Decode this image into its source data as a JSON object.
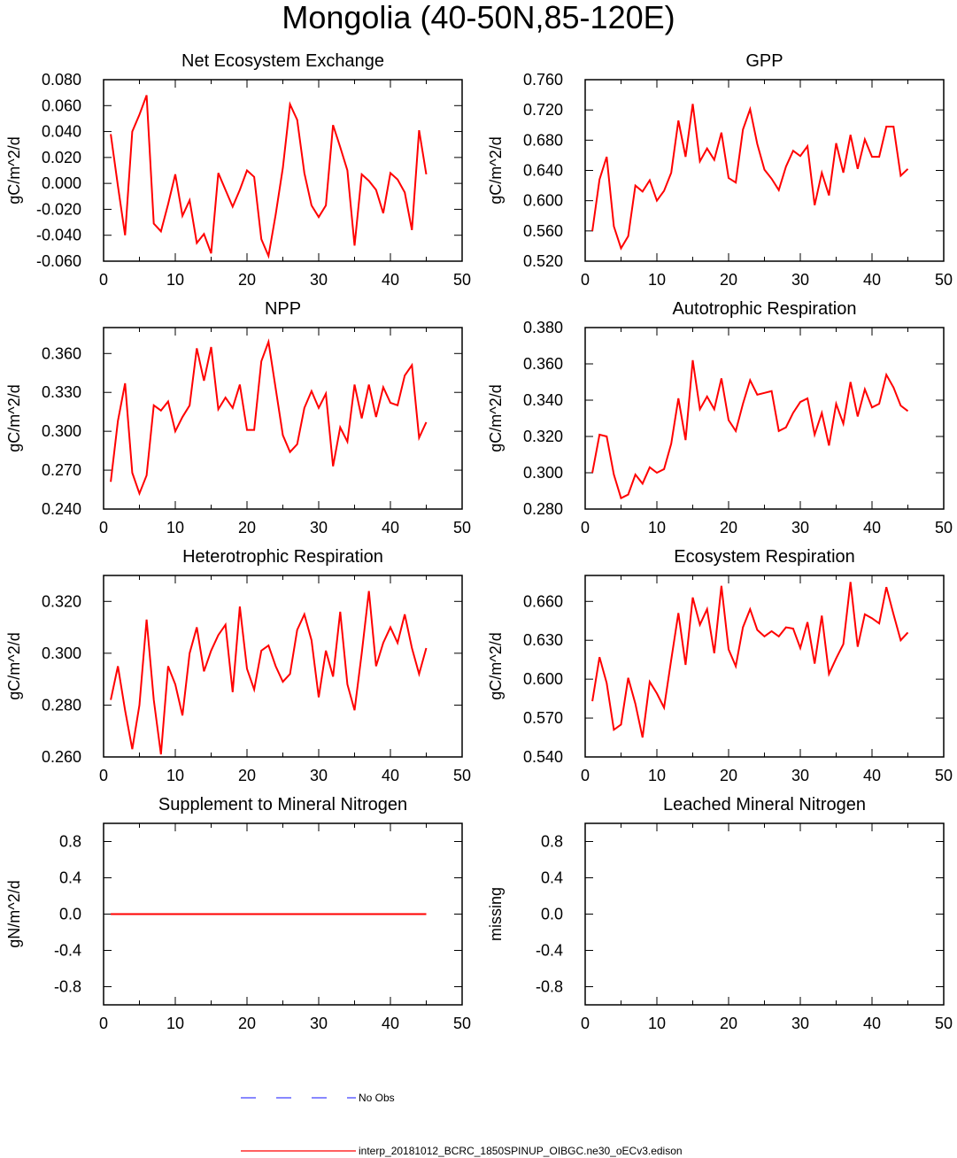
{
  "title": "Mongolia (40-50N,85-120E)",
  "colors": {
    "model_line": "#ff0000",
    "obs_line": "#4040ff",
    "axes": "#000000"
  },
  "legend": {
    "items": [
      {
        "label": "No Obs",
        "style": "dashed",
        "color": "#4040ff"
      },
      {
        "label": "interp_20181012_BCRC_1850SPINUP_OIBGC.ne30_oECv3.edison",
        "style": "solid",
        "color": "#ff0000"
      }
    ]
  },
  "chart_data": [
    {
      "type": "line",
      "title": "Net Ecosystem Exchange",
      "ylabel": "gC/m^2/d",
      "xlim": [
        0,
        50
      ],
      "ylim": [
        -0.06,
        0.08
      ],
      "xticks": [
        "0",
        "10",
        "20",
        "30",
        "40",
        "50"
      ],
      "yticks": [
        -0.06,
        -0.04,
        -0.02,
        0.0,
        0.02,
        0.04,
        0.06,
        0.08
      ],
      "ytick_labels": [
        "-0.060",
        "-0.040",
        "-0.020",
        "0.000",
        "0.020",
        "0.040",
        "0.060",
        "0.080"
      ],
      "series": [
        {
          "x": [
            1,
            2,
            3,
            4,
            5,
            6,
            7,
            8,
            9,
            10,
            11,
            12,
            13,
            14,
            15,
            16,
            17,
            18,
            19,
            20,
            21,
            22,
            23,
            24,
            25,
            26,
            27,
            28,
            29,
            30,
            31,
            32,
            33,
            34,
            35,
            36,
            37,
            38,
            39,
            40,
            41,
            42,
            43,
            44,
            45
          ],
          "values": [
            0.038,
            -0.002,
            -0.04,
            0.04,
            0.053,
            0.068,
            -0.031,
            -0.037,
            -0.016,
            0.007,
            -0.025,
            -0.013,
            -0.046,
            -0.039,
            -0.054,
            0.008,
            -0.005,
            -0.018,
            -0.005,
            0.01,
            0.005,
            -0.043,
            -0.056,
            -0.024,
            0.012,
            0.061,
            0.049,
            0.008,
            -0.017,
            -0.026,
            -0.017,
            0.045,
            0.028,
            0.01,
            -0.048,
            0.007,
            0.002,
            -0.005,
            -0.023,
            0.008,
            0.003,
            -0.007,
            -0.036,
            0.041,
            0.007
          ]
        }
      ]
    },
    {
      "type": "line",
      "title": "GPP",
      "ylabel": "gC/m^2/d",
      "xlim": [
        0,
        50
      ],
      "ylim": [
        0.52,
        0.76
      ],
      "xticks": [
        "0",
        "10",
        "20",
        "30",
        "40",
        "50"
      ],
      "yticks": [
        0.52,
        0.56,
        0.6,
        0.64,
        0.68,
        0.72,
        0.76
      ],
      "ytick_labels": [
        "0.520",
        "0.560",
        "0.600",
        "0.640",
        "0.680",
        "0.720",
        "0.760"
      ],
      "series": [
        {
          "x": [
            1,
            2,
            3,
            4,
            5,
            6,
            7,
            8,
            9,
            10,
            11,
            12,
            13,
            14,
            15,
            16,
            17,
            18,
            19,
            20,
            21,
            22,
            23,
            24,
            25,
            26,
            27,
            28,
            29,
            30,
            31,
            32,
            33,
            34,
            35,
            36,
            37,
            38,
            39,
            40,
            41,
            42,
            43,
            44,
            45
          ],
          "values": [
            0.56,
            0.628,
            0.658,
            0.566,
            0.537,
            0.553,
            0.62,
            0.612,
            0.627,
            0.6,
            0.613,
            0.637,
            0.706,
            0.658,
            0.728,
            0.652,
            0.669,
            0.654,
            0.69,
            0.63,
            0.624,
            0.694,
            0.721,
            0.675,
            0.641,
            0.629,
            0.614,
            0.645,
            0.666,
            0.659,
            0.672,
            0.594,
            0.637,
            0.607,
            0.676,
            0.637,
            0.687,
            0.642,
            0.681,
            0.658,
            0.658,
            0.698,
            0.698,
            0.633,
            0.642
          ]
        }
      ]
    },
    {
      "type": "line",
      "title": "NPP",
      "ylabel": "gC/m^2/d",
      "xlim": [
        0,
        50
      ],
      "ylim": [
        0.24,
        0.38
      ],
      "xticks": [
        "0",
        "10",
        "20",
        "30",
        "40",
        "50"
      ],
      "yticks": [
        0.24,
        0.27,
        0.3,
        0.33,
        0.36
      ],
      "ytick_labels": [
        "0.240",
        "0.270",
        "0.300",
        "0.330",
        "0.360"
      ],
      "series": [
        {
          "x": [
            1,
            2,
            3,
            4,
            5,
            6,
            7,
            8,
            9,
            10,
            11,
            12,
            13,
            14,
            15,
            16,
            17,
            18,
            19,
            20,
            21,
            22,
            23,
            24,
            25,
            26,
            27,
            28,
            29,
            30,
            31,
            32,
            33,
            34,
            35,
            36,
            37,
            38,
            39,
            40,
            41,
            42,
            43,
            44,
            45
          ],
          "values": [
            0.261,
            0.308,
            0.337,
            0.268,
            0.252,
            0.266,
            0.32,
            0.316,
            0.323,
            0.3,
            0.311,
            0.32,
            0.364,
            0.339,
            0.365,
            0.317,
            0.326,
            0.318,
            0.336,
            0.301,
            0.301,
            0.354,
            0.369,
            0.333,
            0.297,
            0.284,
            0.29,
            0.318,
            0.331,
            0.318,
            0.329,
            0.273,
            0.303,
            0.292,
            0.336,
            0.31,
            0.336,
            0.311,
            0.334,
            0.322,
            0.32,
            0.343,
            0.351,
            0.295,
            0.307
          ]
        }
      ]
    },
    {
      "type": "line",
      "title": "Autotrophic Respiration",
      "ylabel": "gC/m^2/d",
      "xlim": [
        0,
        50
      ],
      "ylim": [
        0.28,
        0.38
      ],
      "xticks": [
        "0",
        "10",
        "20",
        "30",
        "40",
        "50"
      ],
      "yticks": [
        0.28,
        0.3,
        0.32,
        0.34,
        0.36,
        0.38
      ],
      "ytick_labels": [
        "0.280",
        "0.300",
        "0.320",
        "0.340",
        "0.360",
        "0.380"
      ],
      "series": [
        {
          "x": [
            1,
            2,
            3,
            4,
            5,
            6,
            7,
            8,
            9,
            10,
            11,
            12,
            13,
            14,
            15,
            16,
            17,
            18,
            19,
            20,
            21,
            22,
            23,
            24,
            25,
            26,
            27,
            28,
            29,
            30,
            31,
            32,
            33,
            34,
            35,
            36,
            37,
            38,
            39,
            40,
            41,
            42,
            43,
            44,
            45
          ],
          "values": [
            0.3,
            0.321,
            0.32,
            0.299,
            0.286,
            0.288,
            0.299,
            0.294,
            0.303,
            0.3,
            0.302,
            0.316,
            0.341,
            0.318,
            0.362,
            0.335,
            0.342,
            0.335,
            0.352,
            0.329,
            0.323,
            0.338,
            0.351,
            0.343,
            0.344,
            0.345,
            0.323,
            0.325,
            0.333,
            0.339,
            0.341,
            0.321,
            0.333,
            0.315,
            0.338,
            0.327,
            0.35,
            0.331,
            0.346,
            0.336,
            0.338,
            0.354,
            0.347,
            0.337,
            0.334
          ]
        }
      ]
    },
    {
      "type": "line",
      "title": "Heterotrophic Respiration",
      "ylabel": "gC/m^2/d",
      "xlim": [
        0,
        50
      ],
      "ylim": [
        0.26,
        0.33
      ],
      "xticks": [
        "0",
        "10",
        "20",
        "30",
        "40",
        "50"
      ],
      "yticks": [
        0.26,
        0.28,
        0.3,
        0.32
      ],
      "ytick_labels": [
        "0.260",
        "0.280",
        "0.300",
        "0.320"
      ],
      "series": [
        {
          "x": [
            1,
            2,
            3,
            4,
            5,
            6,
            7,
            8,
            9,
            10,
            11,
            12,
            13,
            14,
            15,
            16,
            17,
            18,
            19,
            20,
            21,
            22,
            23,
            24,
            25,
            26,
            27,
            28,
            29,
            30,
            31,
            32,
            33,
            34,
            35,
            36,
            37,
            38,
            39,
            40,
            41,
            42,
            43,
            44,
            45
          ],
          "values": [
            0.282,
            0.295,
            0.278,
            0.263,
            0.28,
            0.313,
            0.282,
            0.261,
            0.295,
            0.288,
            0.276,
            0.3,
            0.31,
            0.293,
            0.301,
            0.307,
            0.311,
            0.285,
            0.318,
            0.294,
            0.286,
            0.301,
            0.303,
            0.295,
            0.289,
            0.292,
            0.309,
            0.315,
            0.305,
            0.283,
            0.301,
            0.291,
            0.316,
            0.288,
            0.278,
            0.3,
            0.324,
            0.295,
            0.304,
            0.31,
            0.304,
            0.315,
            0.302,
            0.292,
            0.302
          ]
        }
      ]
    },
    {
      "type": "line",
      "title": "Ecosystem Respiration",
      "ylabel": "gC/m^2/d",
      "xlim": [
        0,
        50
      ],
      "ylim": [
        0.54,
        0.68
      ],
      "xticks": [
        "0",
        "10",
        "20",
        "30",
        "40",
        "50"
      ],
      "yticks": [
        0.54,
        0.57,
        0.6,
        0.63,
        0.66
      ],
      "ytick_labels": [
        "0.540",
        "0.570",
        "0.600",
        "0.630",
        "0.660"
      ],
      "series": [
        {
          "x": [
            1,
            2,
            3,
            4,
            5,
            6,
            7,
            8,
            9,
            10,
            11,
            12,
            13,
            14,
            15,
            16,
            17,
            18,
            19,
            20,
            21,
            22,
            23,
            24,
            25,
            26,
            27,
            28,
            29,
            30,
            31,
            32,
            33,
            34,
            35,
            36,
            37,
            38,
            39,
            40,
            41,
            42,
            43,
            44,
            45
          ],
          "values": [
            0.583,
            0.617,
            0.597,
            0.561,
            0.565,
            0.601,
            0.581,
            0.555,
            0.598,
            0.589,
            0.578,
            0.615,
            0.651,
            0.611,
            0.663,
            0.642,
            0.654,
            0.62,
            0.672,
            0.623,
            0.61,
            0.64,
            0.654,
            0.638,
            0.633,
            0.637,
            0.633,
            0.64,
            0.639,
            0.624,
            0.644,
            0.612,
            0.649,
            0.604,
            0.616,
            0.627,
            0.675,
            0.625,
            0.65,
            0.647,
            0.643,
            0.671,
            0.65,
            0.63,
            0.636
          ]
        }
      ]
    },
    {
      "type": "line",
      "title": "Supplement to Mineral Nitrogen",
      "ylabel": "gN/m^2/d",
      "xlim": [
        0,
        50
      ],
      "ylim": [
        -1.0,
        1.0
      ],
      "xticks": [
        "0",
        "10",
        "20",
        "30",
        "40",
        "50"
      ],
      "yticks": [
        -0.8,
        -0.4,
        0.0,
        0.4,
        0.8
      ],
      "ytick_labels": [
        "-0.8",
        "-0.4",
        "0.0",
        "0.4",
        "0.8"
      ],
      "series": [
        {
          "x": [
            1,
            45
          ],
          "values": [
            0.0,
            0.0
          ]
        }
      ]
    },
    {
      "type": "line",
      "title": "Leached Mineral Nitrogen",
      "ylabel": "missing",
      "xlim": [
        0,
        50
      ],
      "ylim": [
        -1.0,
        1.0
      ],
      "xticks": [
        "0",
        "10",
        "20",
        "30",
        "40",
        "50"
      ],
      "yticks": [
        -0.8,
        -0.4,
        0.0,
        0.4,
        0.8
      ],
      "ytick_labels": [
        "-0.8",
        "-0.4",
        "0.0",
        "0.4",
        "0.8"
      ],
      "series": []
    }
  ]
}
